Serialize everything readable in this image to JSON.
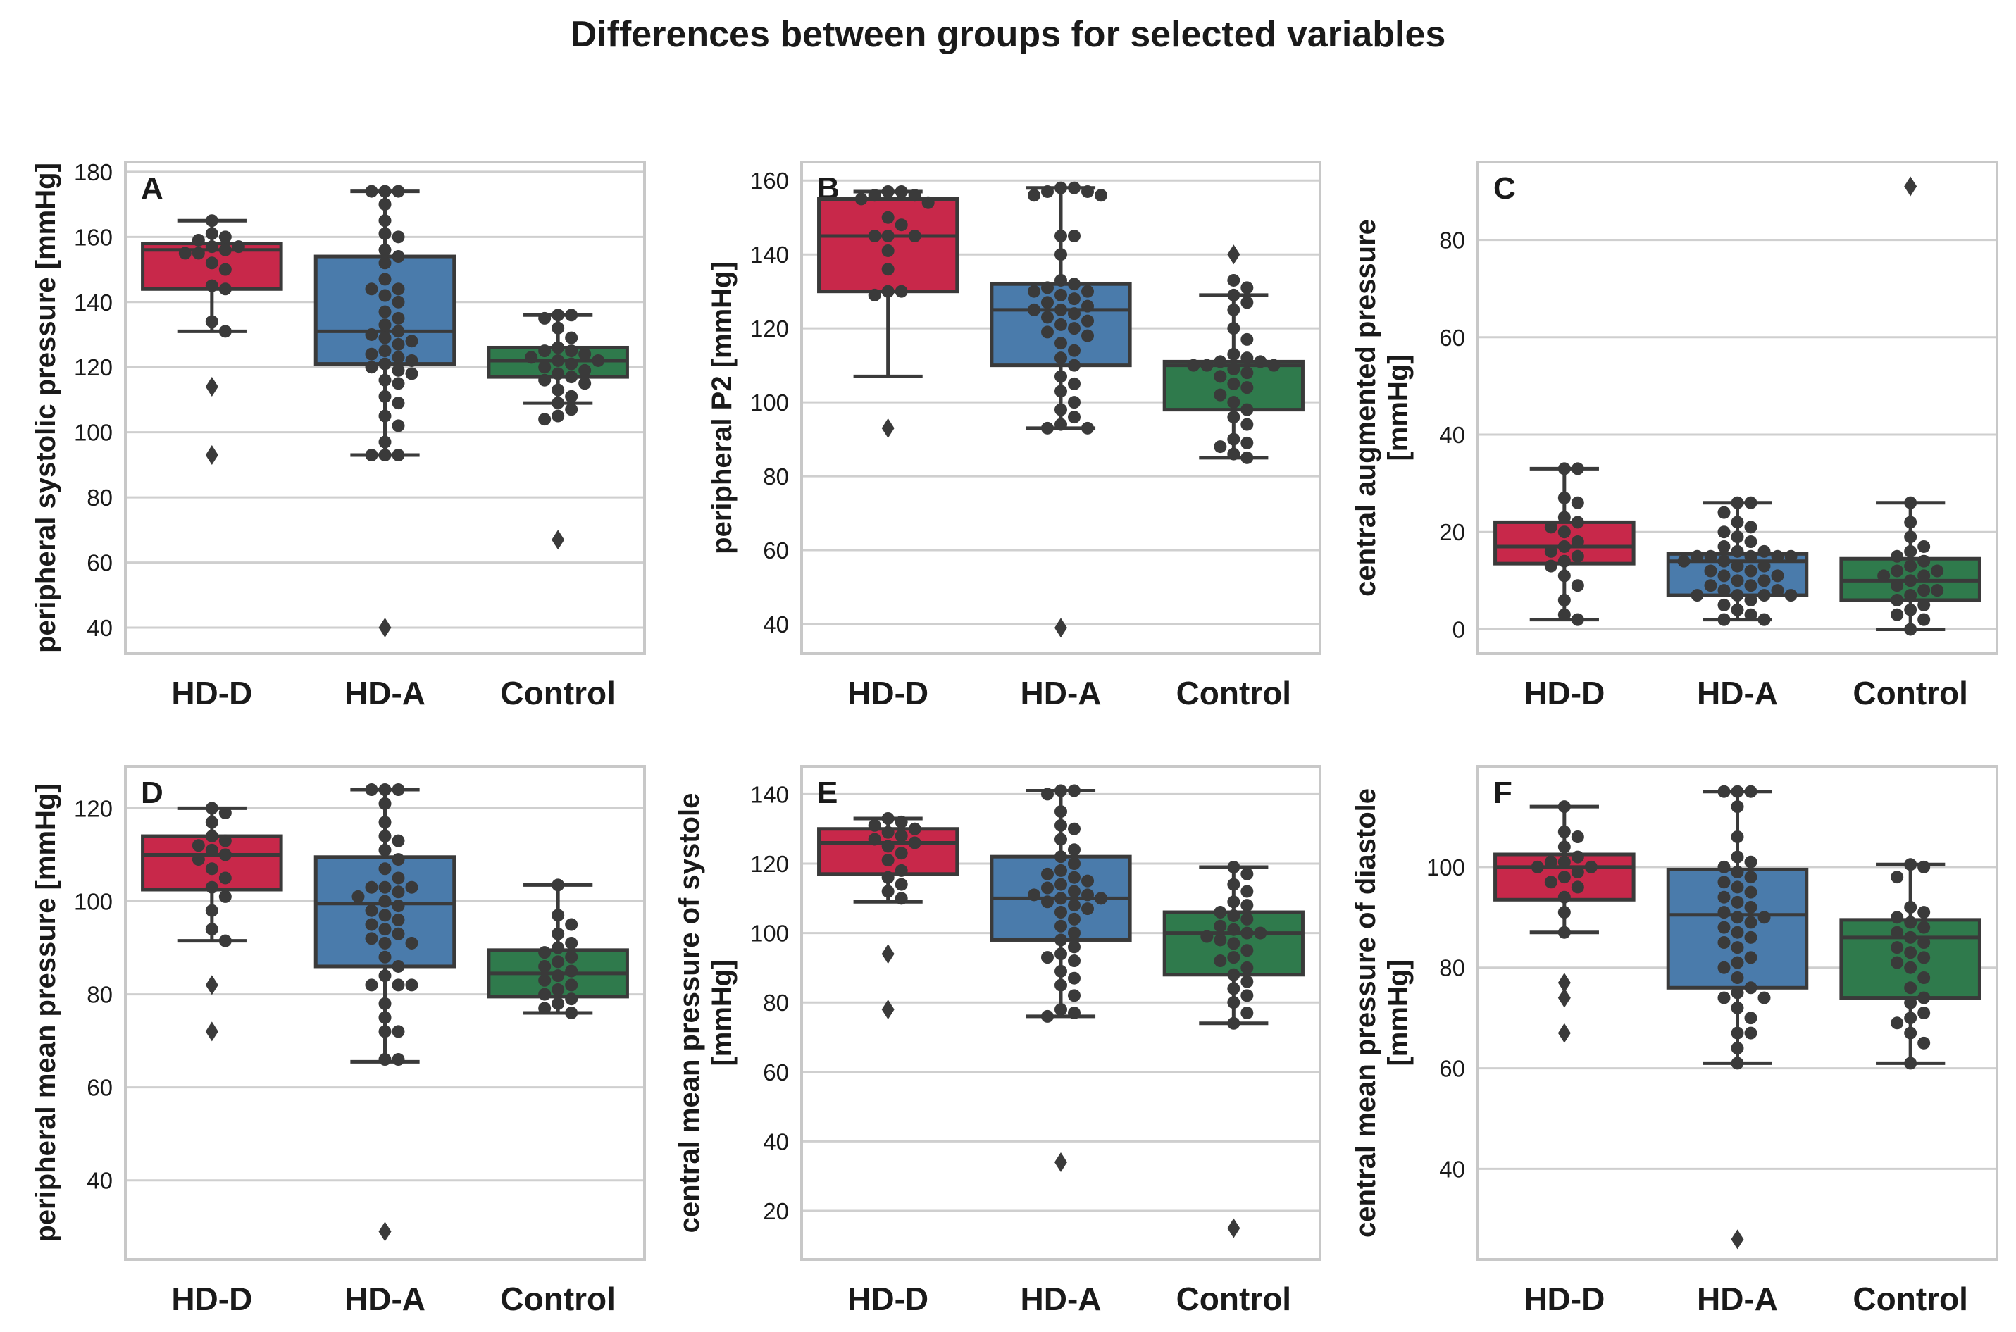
{
  "title": "Differences between groups for selected variables",
  "groups": [
    "HD-D",
    "HD-A",
    "Control"
  ],
  "group_colors": [
    "#c8284a",
    "#4a7bab",
    "#2f7a4c"
  ],
  "chart_data": [
    {
      "type": "box",
      "label": "A",
      "ylabel": "peripheral systolic pressure [mmHg]",
      "ylim": [
        32,
        183
      ],
      "yticks": [
        "40",
        "60",
        "80",
        "100",
        "120",
        "140",
        "160",
        "180"
      ],
      "boxes": [
        {
          "group": "HD-D",
          "q1": 144,
          "median": 156,
          "q3": 158,
          "whisker_low": 131,
          "whisker_high": 165,
          "outliers": [
            114,
            93
          ]
        },
        {
          "group": "HD-A",
          "q1": 121,
          "median": 131,
          "q3": 154,
          "whisker_low": 93,
          "whisker_high": 174,
          "outliers": [
            40
          ]
        },
        {
          "group": "Control",
          "q1": 117,
          "median": 122,
          "q3": 126,
          "whisker_low": 109,
          "whisker_high": 136,
          "outliers": [
            67
          ]
        }
      ],
      "points": [
        [
          165,
          161,
          160,
          159,
          157,
          157,
          156,
          155,
          155,
          152,
          150,
          145,
          144,
          134,
          131
        ],
        [
          174,
          174,
          174,
          170,
          165,
          161,
          160,
          156,
          154,
          152,
          147,
          144,
          144,
          142,
          140,
          137,
          135,
          133,
          131,
          130,
          129,
          128,
          127,
          125,
          124,
          123,
          122,
          121,
          120,
          119,
          118,
          116,
          115,
          111,
          109,
          105,
          102,
          97,
          93,
          93,
          93
        ],
        [
          136,
          136,
          135,
          132,
          129,
          126,
          125,
          125,
          124,
          123,
          122,
          122,
          121,
          120,
          119,
          118,
          117,
          116,
          115,
          113,
          111,
          109,
          107,
          105,
          104
        ]
      ]
    },
    {
      "type": "box",
      "label": "B",
      "ylabel": "peripheral P2 [mmHg]",
      "ylim": [
        32,
        165
      ],
      "yticks": [
        "40",
        "60",
        "80",
        "100",
        "120",
        "140",
        "160"
      ],
      "boxes": [
        {
          "group": "HD-D",
          "q1": 130,
          "median": 145,
          "q3": 155,
          "whisker_low": 107,
          "whisker_high": 157,
          "outliers": [
            93
          ]
        },
        {
          "group": "HD-A",
          "q1": 110,
          "median": 125,
          "q3": 132,
          "whisker_low": 93,
          "whisker_high": 158,
          "outliers": [
            39
          ]
        },
        {
          "group": "Control",
          "q1": 98,
          "median": 110,
          "q3": 111,
          "whisker_low": 85,
          "whisker_high": 129,
          "outliers": [
            140
          ]
        }
      ],
      "points": [
        [
          157,
          157,
          156,
          156,
          155,
          154,
          150,
          148,
          145,
          145,
          145,
          141,
          136,
          130,
          130,
          129
        ],
        [
          158,
          158,
          157,
          157,
          156,
          156,
          145,
          145,
          140,
          133,
          132,
          131,
          130,
          130,
          129,
          128,
          127,
          126,
          125,
          125,
          124,
          123,
          122,
          121,
          120,
          119,
          118,
          116,
          114,
          112,
          110,
          107,
          105,
          103,
          100,
          98,
          96,
          94,
          93,
          93
        ],
        [
          133,
          131,
          129,
          127,
          125,
          120,
          117,
          113,
          112,
          111,
          111,
          110,
          110,
          110,
          109,
          108,
          107,
          105,
          104,
          102,
          100,
          98,
          96,
          94,
          90,
          89,
          88,
          86,
          85
        ]
      ]
    },
    {
      "type": "box",
      "label": "C",
      "ylabel": "central augmented pressure\n[mmHg]",
      "ylim": [
        -5,
        96
      ],
      "yticks": [
        "0",
        "20",
        "40",
        "60",
        "80"
      ],
      "boxes": [
        {
          "group": "HD-D",
          "q1": 13.5,
          "median": 17,
          "q3": 22,
          "whisker_low": 2,
          "whisker_high": 33,
          "outliers": []
        },
        {
          "group": "HD-A",
          "q1": 7,
          "median": 14,
          "q3": 15.5,
          "whisker_low": 2,
          "whisker_high": 26,
          "outliers": []
        },
        {
          "group": "Control",
          "q1": 6,
          "median": 10,
          "q3": 14.5,
          "whisker_low": 0,
          "whisker_high": 26,
          "outliers": [
            91
          ]
        }
      ],
      "points": [
        [
          33,
          33,
          27,
          26,
          23,
          22,
          21,
          20,
          18,
          17,
          16,
          15,
          14,
          13,
          11,
          9,
          6,
          3,
          2
        ],
        [
          26,
          26,
          24,
          22,
          21,
          20,
          19,
          18,
          17,
          16,
          16,
          15,
          15,
          15,
          15,
          15,
          14,
          14,
          13,
          13,
          12,
          12,
          11,
          11,
          10,
          10,
          9,
          9,
          8,
          8,
          7,
          7,
          7,
          7,
          6,
          5,
          4,
          3,
          2,
          2
        ],
        [
          26,
          22,
          19,
          17,
          16,
          15,
          14,
          13,
          12,
          12,
          11,
          11,
          10,
          9,
          8,
          8,
          7,
          6,
          5,
          4,
          3,
          2,
          0
        ]
      ]
    },
    {
      "type": "box",
      "label": "D",
      "ylabel": "peripheral mean pressure [mmHg]",
      "ylim": [
        23,
        129
      ],
      "yticks": [
        "40",
        "60",
        "80",
        "100",
        "120"
      ],
      "boxes": [
        {
          "group": "HD-D",
          "q1": 102.5,
          "median": 110,
          "q3": 114,
          "whisker_low": 91.5,
          "whisker_high": 120,
          "outliers": [
            82,
            72
          ]
        },
        {
          "group": "HD-A",
          "q1": 86,
          "median": 99.5,
          "q3": 109.5,
          "whisker_low": 65.5,
          "whisker_high": 124,
          "outliers": [
            29
          ]
        },
        {
          "group": "Control",
          "q1": 79.5,
          "median": 84.5,
          "q3": 89.5,
          "whisker_low": 76,
          "whisker_high": 103.5,
          "outliers": []
        }
      ],
      "points": [
        [
          120,
          119,
          117,
          114,
          113,
          112,
          111,
          110,
          109,
          107,
          105,
          103,
          101,
          98,
          94,
          91.5
        ],
        [
          124,
          124,
          124,
          121,
          117,
          114,
          113,
          111,
          109,
          107,
          105,
          103,
          103,
          103,
          102,
          101,
          100,
          99,
          98,
          97,
          96,
          95,
          94,
          93,
          92,
          91,
          91,
          88,
          86,
          84,
          82,
          82,
          82,
          78,
          75,
          72,
          72,
          66,
          66
        ],
        [
          103.5,
          97,
          95,
          93,
          91,
          90,
          89,
          88,
          87,
          86,
          85,
          84,
          83,
          82,
          81,
          80,
          79,
          78,
          77,
          76
        ]
      ]
    },
    {
      "type": "box",
      "label": "E",
      "ylabel": "central mean pressure of systole\n[mmHg]",
      "ylim": [
        6,
        148
      ],
      "yticks": [
        "20",
        "40",
        "60",
        "80",
        "100",
        "120",
        "140"
      ],
      "boxes": [
        {
          "group": "HD-D",
          "q1": 117,
          "median": 126,
          "q3": 130,
          "whisker_low": 109,
          "whisker_high": 133,
          "outliers": [
            94,
            78
          ]
        },
        {
          "group": "HD-A",
          "q1": 98,
          "median": 110,
          "q3": 122,
          "whisker_low": 76,
          "whisker_high": 141,
          "outliers": [
            34
          ]
        },
        {
          "group": "Control",
          "q1": 88,
          "median": 100,
          "q3": 106,
          "whisker_low": 74,
          "whisker_high": 119,
          "outliers": [
            15
          ]
        }
      ],
      "points": [
        [
          133,
          132,
          131,
          130,
          129,
          128,
          127,
          126,
          125,
          123,
          121,
          118,
          116,
          114,
          112,
          110
        ],
        [
          141,
          141,
          140,
          135,
          131,
          130,
          127,
          124,
          122,
          120,
          118,
          117,
          116,
          115,
          114,
          113,
          112,
          111,
          111,
          110,
          110,
          109,
          108,
          107,
          106,
          104,
          102,
          100,
          98,
          96,
          94,
          93,
          92,
          89,
          87,
          85,
          82,
          78,
          77,
          76
        ],
        [
          119,
          117,
          114,
          112,
          109,
          108,
          106,
          105,
          104,
          102,
          101,
          100,
          100,
          99,
          98,
          97,
          95,
          93,
          92,
          90,
          88,
          86,
          84,
          82,
          80,
          77,
          74
        ]
      ]
    },
    {
      "type": "box",
      "label": "F",
      "ylabel": "central mean pressure of diastole\n[mmHg]",
      "ylim": [
        22,
        120
      ],
      "yticks": [
        "40",
        "60",
        "80",
        "100"
      ],
      "boxes": [
        {
          "group": "HD-D",
          "q1": 93.5,
          "median": 100,
          "q3": 102.5,
          "whisker_low": 87,
          "whisker_high": 112,
          "outliers": [
            77,
            74,
            67
          ]
        },
        {
          "group": "HD-A",
          "q1": 76,
          "median": 90.5,
          "q3": 99.5,
          "whisker_low": 61,
          "whisker_high": 115,
          "outliers": [
            26
          ]
        },
        {
          "group": "Control",
          "q1": 74,
          "median": 86,
          "q3": 89.5,
          "whisker_low": 61,
          "whisker_high": 100.5,
          "outliers": []
        }
      ],
      "points": [
        [
          112,
          107,
          106,
          104,
          102,
          101,
          101,
          100,
          100,
          99,
          98,
          97,
          96,
          94,
          91,
          87
        ],
        [
          115,
          115,
          115,
          112,
          106,
          102,
          101,
          100,
          99,
          98,
          97,
          96,
          95,
          94,
          93,
          92,
          91,
          90,
          90,
          89,
          88,
          87,
          86,
          85,
          84,
          82,
          81,
          80,
          78,
          76,
          75,
          74,
          74,
          72,
          70,
          67,
          67,
          64,
          61
        ],
        [
          100.5,
          100,
          98,
          92,
          91,
          90,
          89,
          88,
          87,
          86,
          85,
          84,
          83,
          82,
          81,
          80,
          78,
          76,
          74,
          73,
          71,
          70,
          69,
          67,
          65,
          61
        ]
      ]
    }
  ]
}
